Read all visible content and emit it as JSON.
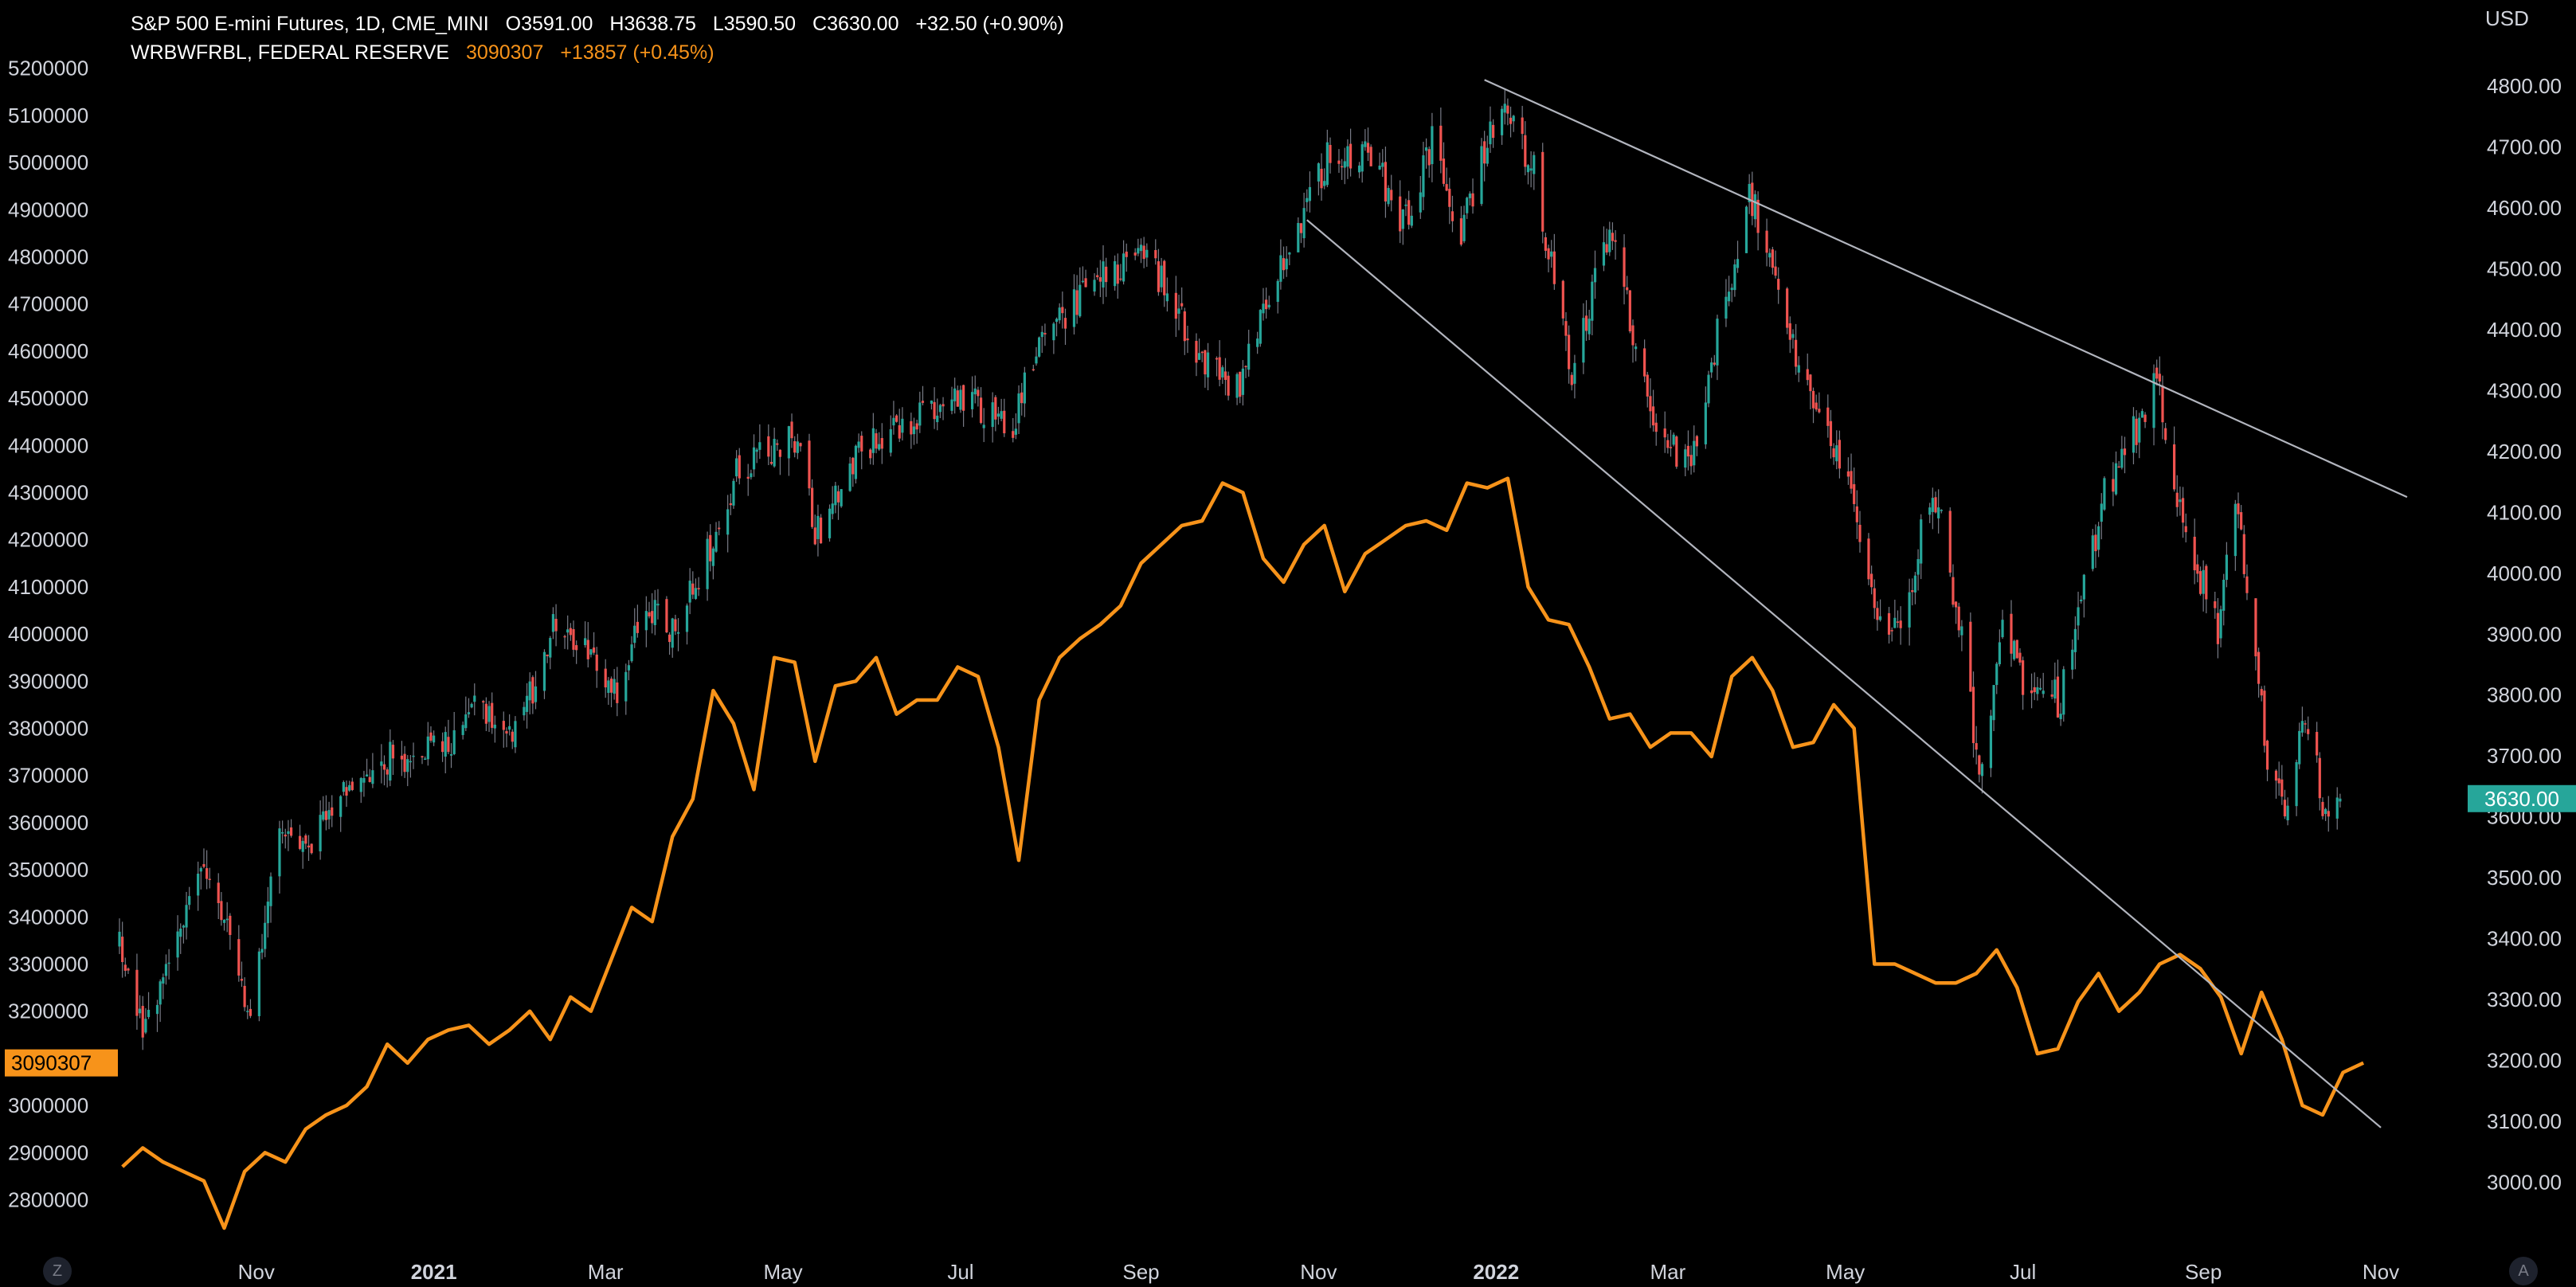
{
  "legend": {
    "main_symbol": "S&P 500 E-mini Futures, 1D, CME_MINI",
    "open": "O3591.00",
    "high": "H3638.75",
    "low": "L3590.50",
    "close": "C3630.00",
    "change": "+32.50 (+0.90%)",
    "overlay_symbol": "WRBWFRBL, FEDERAL RESERVE",
    "overlay_value": "3090307",
    "overlay_change": "+13857 (+0.45%)"
  },
  "right_axis": {
    "unit": "USD",
    "last_price_label": "3630.00"
  },
  "left_axis": {
    "last_value_label": "3090307"
  },
  "corner_buttons": {
    "left": "Z",
    "right": "A"
  },
  "colors": {
    "background": "#000000",
    "up": "#26a69a",
    "down": "#ef5350",
    "wick": "#787b86",
    "overlay": "#f7931a",
    "trendline": "#b2b5be",
    "axis_text": "#d1d4dc",
    "price_badge": "#26a69a"
  },
  "chart_data": [
    {
      "type": "candlestick",
      "series_name": "S&P 500 E-mini Futures",
      "axis": "right",
      "unit": "USD",
      "ylim": [
        2925,
        4860
      ],
      "yticks": [
        "3000.00",
        "3100.00",
        "3200.00",
        "3300.00",
        "3400.00",
        "3500.00",
        "3600.00",
        "3700.00",
        "3800.00",
        "3900.00",
        "4000.00",
        "4100.00",
        "4200.00",
        "4300.00",
        "4400.00",
        "4500.00",
        "4600.00",
        "4700.00",
        "4800.00"
      ],
      "xlim": [
        "2020-09-15",
        "2022-11-30"
      ],
      "xticks": [
        {
          "date": "2020-11-01",
          "label": "Nov"
        },
        {
          "date": "2021-01-01",
          "label": "2021"
        },
        {
          "date": "2021-03-01",
          "label": "Mar"
        },
        {
          "date": "2021-05-01",
          "label": "May"
        },
        {
          "date": "2021-07-01",
          "label": "Jul"
        },
        {
          "date": "2021-09-01",
          "label": "Sep"
        },
        {
          "date": "2021-11-01",
          "label": "Nov"
        },
        {
          "date": "2022-01-01",
          "label": "2022"
        },
        {
          "date": "2022-03-01",
          "label": "Mar"
        },
        {
          "date": "2022-05-01",
          "label": "May"
        },
        {
          "date": "2022-07-01",
          "label": "Jul"
        },
        {
          "date": "2022-09-01",
          "label": "Sep"
        },
        {
          "date": "2022-11-01",
          "label": "Nov"
        }
      ],
      "close_path": [
        [
          "2020-09-15",
          3390
        ],
        [
          "2020-09-23",
          3240
        ],
        [
          "2020-10-01",
          3340
        ],
        [
          "2020-10-12",
          3520
        ],
        [
          "2020-10-20",
          3440
        ],
        [
          "2020-10-30",
          3270
        ],
        [
          "2020-11-09",
          3560
        ],
        [
          "2020-11-20",
          3560
        ],
        [
          "2020-12-01",
          3650
        ],
        [
          "2020-12-18",
          3700
        ],
        [
          "2021-01-04",
          3710
        ],
        [
          "2021-01-15",
          3790
        ],
        [
          "2021-01-29",
          3730
        ],
        [
          "2021-02-12",
          3930
        ],
        [
          "2021-03-04",
          3800
        ],
        [
          "2021-03-15",
          3960
        ],
        [
          "2021-03-25",
          3900
        ],
        [
          "2021-04-15",
          4160
        ],
        [
          "2021-05-07",
          4230
        ],
        [
          "2021-05-12",
          4060
        ],
        [
          "2021-05-28",
          4200
        ],
        [
          "2021-06-15",
          4250
        ],
        [
          "2021-06-30",
          4290
        ],
        [
          "2021-07-19",
          4250
        ],
        [
          "2021-07-30",
          4400
        ],
        [
          "2021-08-16",
          4470
        ],
        [
          "2021-09-02",
          4540
        ],
        [
          "2021-09-20",
          4360
        ],
        [
          "2021-10-04",
          4300
        ],
        [
          "2021-10-20",
          4520
        ],
        [
          "2021-11-04",
          4680
        ],
        [
          "2021-11-18",
          4700
        ],
        [
          "2021-11-30",
          4570
        ],
        [
          "2021-12-10",
          4710
        ],
        [
          "2021-12-20",
          4560
        ],
        [
          "2022-01-03",
          4790
        ],
        [
          "2022-01-14",
          4660
        ],
        [
          "2022-01-27",
          4330
        ],
        [
          "2022-02-09",
          4560
        ],
        [
          "2022-02-24",
          4250
        ],
        [
          "2022-03-08",
          4170
        ],
        [
          "2022-03-29",
          4630
        ],
        [
          "2022-04-12",
          4390
        ],
        [
          "2022-04-22",
          4270
        ],
        [
          "2022-05-02",
          4150
        ],
        [
          "2022-05-12",
          3930
        ],
        [
          "2022-05-20",
          3910
        ],
        [
          "2022-05-31",
          4150
        ],
        [
          "2022-06-10",
          3900
        ],
        [
          "2022-06-16",
          3670
        ],
        [
          "2022-06-24",
          3900
        ],
        [
          "2022-07-01",
          3830
        ],
        [
          "2022-07-14",
          3790
        ],
        [
          "2022-07-29",
          4130
        ],
        [
          "2022-08-16",
          4310
        ],
        [
          "2022-08-26",
          4060
        ],
        [
          "2022-09-06",
          3910
        ],
        [
          "2022-09-12",
          4130
        ],
        [
          "2022-09-23",
          3690
        ],
        [
          "2022-09-30",
          3590
        ],
        [
          "2022-10-06",
          3780
        ],
        [
          "2022-10-13",
          3590
        ],
        [
          "2022-10-18",
          3630
        ]
      ],
      "trendlines": [
        {
          "points": [
            [
              "2021-12-28",
              4810
            ],
            [
              "2022-11-10",
              4125
            ]
          ]
        },
        {
          "points": [
            [
              "2021-10-28",
              4580
            ],
            [
              "2022-11-01",
              3090
            ]
          ]
        }
      ]
    },
    {
      "type": "line",
      "series_name": "WRBWFRBL",
      "axis": "left",
      "ylim": [
        2740000,
        5240000
      ],
      "yticks": [
        "2800000",
        "2900000",
        "3000000",
        "3100000",
        "3200000",
        "3300000",
        "3400000",
        "3500000",
        "3600000",
        "3700000",
        "3800000",
        "3900000",
        "4000000",
        "4100000",
        "4200000",
        "4300000",
        "4400000",
        "4500000",
        "4600000",
        "4700000",
        "4800000",
        "4900000",
        "5000000",
        "5100000",
        "5200000"
      ],
      "points": [
        [
          "2020-09-16",
          2870000
        ],
        [
          "2020-09-23",
          2910000
        ],
        [
          "2020-09-30",
          2880000
        ],
        [
          "2020-10-07",
          2860000
        ],
        [
          "2020-10-14",
          2840000
        ],
        [
          "2020-10-21",
          2740000
        ],
        [
          "2020-10-28",
          2860000
        ],
        [
          "2020-11-04",
          2900000
        ],
        [
          "2020-11-11",
          2880000
        ],
        [
          "2020-11-18",
          2950000
        ],
        [
          "2020-11-25",
          2980000
        ],
        [
          "2020-12-02",
          3000000
        ],
        [
          "2020-12-09",
          3040000
        ],
        [
          "2020-12-16",
          3130000
        ],
        [
          "2020-12-23",
          3090000
        ],
        [
          "2020-12-30",
          3140000
        ],
        [
          "2021-01-06",
          3160000
        ],
        [
          "2021-01-13",
          3170000
        ],
        [
          "2021-01-20",
          3130000
        ],
        [
          "2021-01-27",
          3160000
        ],
        [
          "2021-02-03",
          3200000
        ],
        [
          "2021-02-10",
          3140000
        ],
        [
          "2021-02-17",
          3230000
        ],
        [
          "2021-02-24",
          3200000
        ],
        [
          "2021-03-03",
          3310000
        ],
        [
          "2021-03-10",
          3420000
        ],
        [
          "2021-03-17",
          3390000
        ],
        [
          "2021-03-24",
          3570000
        ],
        [
          "2021-03-31",
          3650000
        ],
        [
          "2021-04-07",
          3880000
        ],
        [
          "2021-04-14",
          3810000
        ],
        [
          "2021-04-21",
          3670000
        ],
        [
          "2021-04-28",
          3950000
        ],
        [
          "2021-05-05",
          3940000
        ],
        [
          "2021-05-12",
          3730000
        ],
        [
          "2021-05-19",
          3890000
        ],
        [
          "2021-05-26",
          3900000
        ],
        [
          "2021-06-02",
          3950000
        ],
        [
          "2021-06-09",
          3830000
        ],
        [
          "2021-06-16",
          3860000
        ],
        [
          "2021-06-23",
          3860000
        ],
        [
          "2021-06-30",
          3930000
        ],
        [
          "2021-07-07",
          3910000
        ],
        [
          "2021-07-14",
          3760000
        ],
        [
          "2021-07-21",
          3520000
        ],
        [
          "2021-07-28",
          3860000
        ],
        [
          "2021-08-04",
          3950000
        ],
        [
          "2021-08-11",
          3990000
        ],
        [
          "2021-08-18",
          4020000
        ],
        [
          "2021-08-25",
          4060000
        ],
        [
          "2021-09-01",
          4150000
        ],
        [
          "2021-09-08",
          4190000
        ],
        [
          "2021-09-15",
          4230000
        ],
        [
          "2021-09-22",
          4240000
        ],
        [
          "2021-09-29",
          4320000
        ],
        [
          "2021-10-06",
          4300000
        ],
        [
          "2021-10-13",
          4160000
        ],
        [
          "2021-10-20",
          4110000
        ],
        [
          "2021-10-27",
          4190000
        ],
        [
          "2021-11-03",
          4230000
        ],
        [
          "2021-11-10",
          4090000
        ],
        [
          "2021-11-17",
          4170000
        ],
        [
          "2021-11-24",
          4200000
        ],
        [
          "2021-12-01",
          4230000
        ],
        [
          "2021-12-08",
          4240000
        ],
        [
          "2021-12-15",
          4220000
        ],
        [
          "2021-12-22",
          4320000
        ],
        [
          "2021-12-29",
          4310000
        ],
        [
          "2022-01-05",
          4330000
        ],
        [
          "2022-01-12",
          4100000
        ],
        [
          "2022-01-19",
          4030000
        ],
        [
          "2022-01-26",
          4020000
        ],
        [
          "2022-02-02",
          3930000
        ],
        [
          "2022-02-09",
          3820000
        ],
        [
          "2022-02-16",
          3830000
        ],
        [
          "2022-02-23",
          3760000
        ],
        [
          "2022-03-02",
          3790000
        ],
        [
          "2022-03-09",
          3790000
        ],
        [
          "2022-03-16",
          3740000
        ],
        [
          "2022-03-23",
          3910000
        ],
        [
          "2022-03-30",
          3950000
        ],
        [
          "2022-04-06",
          3880000
        ],
        [
          "2022-04-13",
          3760000
        ],
        [
          "2022-04-20",
          3770000
        ],
        [
          "2022-04-27",
          3850000
        ],
        [
          "2022-05-04",
          3800000
        ],
        [
          "2022-05-11",
          3300000
        ],
        [
          "2022-05-18",
          3300000
        ],
        [
          "2022-05-25",
          3280000
        ],
        [
          "2022-06-01",
          3260000
        ],
        [
          "2022-06-08",
          3260000
        ],
        [
          "2022-06-15",
          3280000
        ],
        [
          "2022-06-22",
          3330000
        ],
        [
          "2022-06-29",
          3250000
        ],
        [
          "2022-07-06",
          3110000
        ],
        [
          "2022-07-13",
          3120000
        ],
        [
          "2022-07-20",
          3220000
        ],
        [
          "2022-07-27",
          3280000
        ],
        [
          "2022-08-03",
          3200000
        ],
        [
          "2022-08-10",
          3240000
        ],
        [
          "2022-08-17",
          3300000
        ],
        [
          "2022-08-24",
          3320000
        ],
        [
          "2022-08-31",
          3290000
        ],
        [
          "2022-09-07",
          3230000
        ],
        [
          "2022-09-14",
          3110000
        ],
        [
          "2022-09-21",
          3240000
        ],
        [
          "2022-09-28",
          3140000
        ],
        [
          "2022-10-05",
          3000000
        ],
        [
          "2022-10-12",
          2980000
        ],
        [
          "2022-10-19",
          3070000
        ],
        [
          "2022-10-26",
          3090307
        ]
      ]
    }
  ]
}
